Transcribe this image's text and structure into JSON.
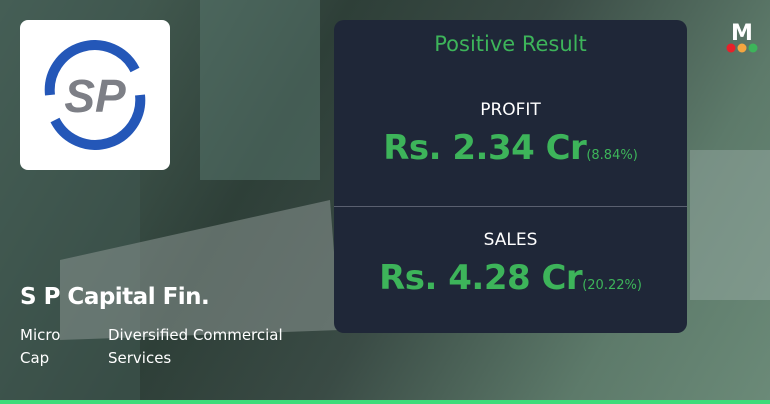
{
  "company": {
    "name": "S P Capital Fin.",
    "cap": "Micro Cap",
    "sector": "Diversified Commercial Services",
    "logo_text": "SP"
  },
  "result": {
    "headline": "Positive Result",
    "profit": {
      "label": "PROFIT",
      "value": "Rs. 2.34 Cr",
      "change": "(8.84%)"
    },
    "sales": {
      "label": "SALES",
      "value": "Rs. 4.28 Cr",
      "change": "(20.22%)"
    }
  },
  "brand": {
    "logo_letter": "M",
    "dot_colors": [
      "#e8202a",
      "#f4a640",
      "#3db45a"
    ]
  },
  "colors": {
    "positive": "#3db45a",
    "card": "#1f2738",
    "bottom_bar": "#3ddc7a"
  }
}
